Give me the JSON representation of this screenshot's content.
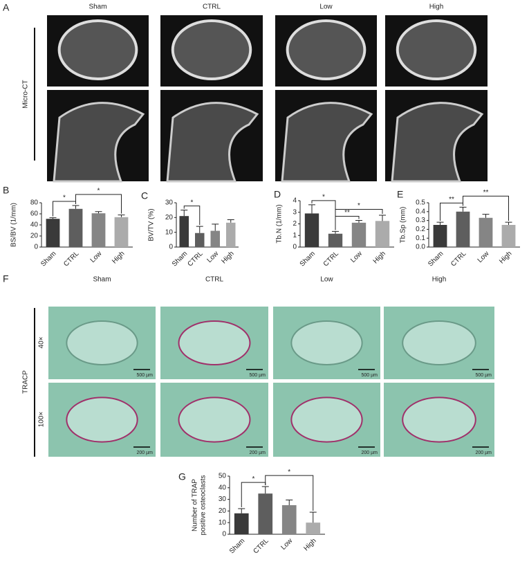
{
  "panel_labels": [
    "A",
    "B",
    "C",
    "D",
    "E",
    "F",
    "G"
  ],
  "micro_ct": {
    "label": "Micro-CT",
    "columns": [
      "Sham",
      "CTRL",
      "Low",
      "High"
    ]
  },
  "tracp": {
    "label": "TRACP",
    "columns": [
      "Sham",
      "CTRL",
      "Low",
      "High"
    ],
    "rows": [
      "40×",
      "100×"
    ],
    "scale_bars": [
      "500 µm",
      "200 µm"
    ]
  },
  "chart_data": [
    {
      "type": "bar",
      "ylabel": "BS/BV (1/mm)",
      "categories": [
        "Sham",
        "CTRL",
        "Low",
        "High"
      ],
      "values": [
        51,
        69,
        61,
        54
      ],
      "errors": [
        2,
        6,
        3,
        4
      ],
      "colors": [
        "#3a3a3a",
        "#5e5e5e",
        "#858585",
        "#ababab"
      ],
      "ylim": [
        0,
        80
      ],
      "yticks": [
        0,
        20,
        40,
        60,
        80
      ],
      "significance": [
        {
          "pair": [
            "Sham",
            "CTRL"
          ],
          "label": "*"
        },
        {
          "pair": [
            "CTRL",
            "High"
          ],
          "label": "*"
        }
      ]
    },
    {
      "type": "bar",
      "ylabel": "BV/TV (%)",
      "categories": [
        "Sham",
        "CTRL",
        "Low",
        "High"
      ],
      "values": [
        21,
        9.5,
        11,
        16.5
      ],
      "errors": [
        4,
        4.5,
        4.5,
        2
      ],
      "colors": [
        "#3a3a3a",
        "#5e5e5e",
        "#858585",
        "#ababab"
      ],
      "ylim": [
        0,
        30
      ],
      "yticks": [
        0,
        10,
        20,
        30
      ],
      "significance": [
        {
          "pair": [
            "Sham",
            "CTRL"
          ],
          "label": "*"
        }
      ]
    },
    {
      "type": "bar",
      "ylabel": "Tb.N (1/mm)",
      "categories": [
        "Sham",
        "CTRL",
        "Low",
        "High"
      ],
      "values": [
        2.9,
        1.15,
        2.1,
        2.25
      ],
      "errors": [
        0.75,
        0.2,
        0.2,
        0.5
      ],
      "colors": [
        "#3a3a3a",
        "#5e5e5e",
        "#858585",
        "#ababab"
      ],
      "ylim": [
        0,
        4
      ],
      "yticks": [
        0,
        1,
        2,
        3,
        4
      ],
      "significance": [
        {
          "pair": [
            "Sham",
            "CTRL"
          ],
          "label": "*"
        },
        {
          "pair": [
            "CTRL",
            "Low"
          ],
          "label": "**"
        },
        {
          "pair": [
            "CTRL",
            "High"
          ],
          "label": "*"
        }
      ]
    },
    {
      "type": "bar",
      "ylabel": "Tb.Sp (mm)",
      "categories": [
        "Sham",
        "CTRL",
        "Low",
        "High"
      ],
      "values": [
        0.25,
        0.4,
        0.33,
        0.25
      ],
      "errors": [
        0.03,
        0.05,
        0.04,
        0.03
      ],
      "colors": [
        "#3a3a3a",
        "#5e5e5e",
        "#858585",
        "#ababab"
      ],
      "ylim": [
        0,
        0.5
      ],
      "yticks": [
        {
          "value": 0,
          "label": "0.0"
        },
        0.1,
        0.2,
        0.3,
        0.4,
        0.5
      ],
      "significance": [
        {
          "pair": [
            "Sham",
            "CTRL"
          ],
          "label": "**"
        },
        {
          "pair": [
            "CTRL",
            "High"
          ],
          "label": "**"
        }
      ]
    },
    {
      "type": "bar",
      "ylabel": [
        "Number of TRAP",
        "positive osteoclasts"
      ],
      "categories": [
        "Sham",
        "CTRL",
        "Low",
        "High"
      ],
      "values": [
        18,
        35,
        25,
        10
      ],
      "errors": [
        4,
        6,
        4.5,
        9
      ],
      "colors": [
        "#3a3a3a",
        "#5e5e5e",
        "#858585",
        "#ababab"
      ],
      "ylim": [
        0,
        50
      ],
      "yticks": [
        0,
        10,
        20,
        30,
        40,
        50
      ],
      "significance": [
        {
          "pair": [
            "Sham",
            "CTRL"
          ],
          "label": "*"
        },
        {
          "pair": [
            "CTRL",
            "High"
          ],
          "label": "*"
        }
      ]
    }
  ]
}
